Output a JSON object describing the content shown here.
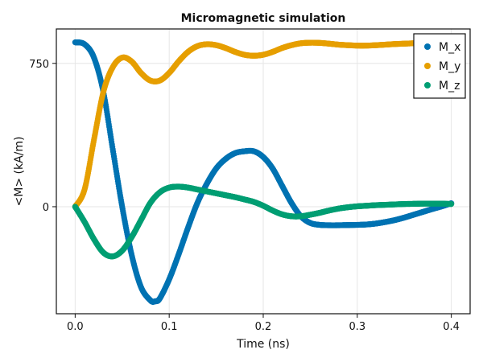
{
  "chart_data": {
    "type": "scatter",
    "title": "Micromagnetic simulation",
    "xlabel": "Time (ns)",
    "ylabel": "<M> (kA/m)",
    "xlim": [
      -0.02,
      0.42
    ],
    "ylim": [
      -560,
      930
    ],
    "xticks": [
      0.0,
      0.1,
      0.2,
      0.3,
      0.4
    ],
    "xtick_labels": [
      "0.0",
      "0.1",
      "0.2",
      "0.3",
      "0.4"
    ],
    "yticks": [
      0,
      750
    ],
    "ytick_labels": [
      "0",
      "750"
    ],
    "grid": true,
    "legend_position": "top-right",
    "series": [
      {
        "name": "M_x",
        "color": "#0072b2",
        "x": [
          0.0,
          0.01,
          0.02,
          0.03,
          0.04,
          0.05,
          0.06,
          0.07,
          0.08,
          0.085,
          0.09,
          0.1,
          0.11,
          0.12,
          0.13,
          0.14,
          0.15,
          0.16,
          0.17,
          0.18,
          0.19,
          0.2,
          0.21,
          0.22,
          0.23,
          0.24,
          0.25,
          0.26,
          0.27,
          0.28,
          0.29,
          0.3,
          0.31,
          0.32,
          0.33,
          0.34,
          0.35,
          0.36,
          0.37,
          0.38,
          0.39,
          0.4
        ],
        "y": [
          860,
          850,
          780,
          600,
          300,
          0,
          -250,
          -420,
          -490,
          -495,
          -480,
          -380,
          -250,
          -110,
          20,
          120,
          200,
          250,
          280,
          290,
          290,
          260,
          200,
          110,
          20,
          -50,
          -85,
          -95,
          -97,
          -97,
          -96,
          -95,
          -93,
          -88,
          -80,
          -70,
          -57,
          -42,
          -27,
          -12,
          2,
          18
        ]
      },
      {
        "name": "M_y",
        "color": "#e69f00",
        "x": [
          0.0,
          0.01,
          0.02,
          0.03,
          0.04,
          0.05,
          0.06,
          0.07,
          0.08,
          0.09,
          0.1,
          0.11,
          0.12,
          0.13,
          0.14,
          0.15,
          0.16,
          0.17,
          0.18,
          0.19,
          0.2,
          0.21,
          0.22,
          0.23,
          0.24,
          0.25,
          0.26,
          0.27,
          0.28,
          0.29,
          0.3,
          0.31,
          0.32,
          0.33,
          0.34,
          0.35,
          0.36,
          0.37,
          0.38,
          0.39,
          0.4
        ],
        "y": [
          0,
          90,
          350,
          600,
          730,
          780,
          760,
          700,
          660,
          660,
          700,
          760,
          810,
          840,
          850,
          845,
          830,
          810,
          795,
          790,
          795,
          810,
          830,
          845,
          855,
          858,
          857,
          853,
          848,
          845,
          843,
          843,
          845,
          848,
          851,
          853,
          855,
          856,
          856,
          856,
          856
        ]
      },
      {
        "name": "M_z",
        "color": "#009e73",
        "x": [
          0.0,
          0.01,
          0.02,
          0.03,
          0.04,
          0.05,
          0.06,
          0.07,
          0.08,
          0.09,
          0.1,
          0.11,
          0.12,
          0.13,
          0.14,
          0.15,
          0.16,
          0.17,
          0.18,
          0.19,
          0.2,
          0.21,
          0.22,
          0.23,
          0.24,
          0.25,
          0.26,
          0.27,
          0.28,
          0.29,
          0.3,
          0.31,
          0.32,
          0.33,
          0.34,
          0.35,
          0.36,
          0.37,
          0.38,
          0.39,
          0.4
        ],
        "y": [
          0,
          -80,
          -170,
          -240,
          -260,
          -230,
          -160,
          -70,
          20,
          75,
          100,
          105,
          100,
          90,
          80,
          70,
          60,
          50,
          38,
          25,
          5,
          -20,
          -40,
          -50,
          -50,
          -42,
          -32,
          -20,
          -10,
          -3,
          2,
          5,
          8,
          10,
          12,
          14,
          15,
          16,
          16,
          16,
          14
        ]
      }
    ]
  }
}
